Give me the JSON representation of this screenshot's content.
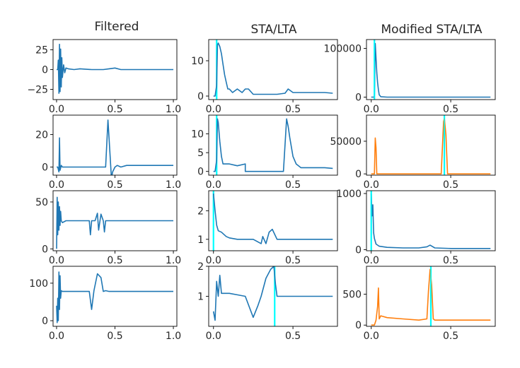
{
  "figure": {
    "columns": [
      "Filtered",
      "STA/LTA",
      "Modified STA/LTA"
    ]
  },
  "colors": {
    "signal": "#1f77b4",
    "modified_alt": "#ff7f0e",
    "marker": "#00ffff",
    "axis": "#000000",
    "text": "#262626"
  },
  "chart_data": [
    {
      "type": "line",
      "row": 0,
      "col": 0,
      "xlim": [
        -0.03,
        1.03
      ],
      "ylim": [
        -38,
        38
      ],
      "xticks": [
        0.0,
        0.5,
        1.0
      ],
      "xtick_labels": [
        "0.0",
        "0.5",
        "1.0"
      ],
      "yticks": [
        25,
        0,
        -25
      ],
      "ytick_labels": [
        "25",
        "0",
        "−25"
      ],
      "markers": [],
      "series": [
        {
          "color": "signal",
          "x": [
            0.0,
            0.01,
            0.015,
            0.02,
            0.025,
            0.03,
            0.035,
            0.04,
            0.045,
            0.05,
            0.06,
            0.07,
            0.08,
            0.1,
            0.15,
            0.2,
            0.3,
            0.4,
            0.45,
            0.5,
            0.55,
            0.6,
            0.7,
            0.8,
            0.9,
            1.0
          ],
          "y": [
            0,
            0,
            12,
            -30,
            32,
            -28,
            26,
            -22,
            15,
            -10,
            6,
            -4,
            2,
            1,
            0,
            1,
            0,
            0,
            1,
            2,
            0,
            0,
            0,
            0,
            0,
            0
          ]
        }
      ]
    },
    {
      "type": "line",
      "row": 0,
      "col": 1,
      "xlim": [
        -0.03,
        0.78
      ],
      "ylim": [
        -1,
        16
      ],
      "xticks": [
        0.0,
        0.5
      ],
      "xtick_labels": [
        "0.0",
        "0.5"
      ],
      "yticks": [
        10,
        0
      ],
      "ytick_labels": [
        "10",
        "0"
      ],
      "markers": [
        0.02
      ],
      "series": [
        {
          "color": "signal",
          "x": [
            0.0,
            0.01,
            0.02,
            0.025,
            0.03,
            0.04,
            0.05,
            0.06,
            0.07,
            0.08,
            0.09,
            0.1,
            0.12,
            0.15,
            0.18,
            0.2,
            0.22,
            0.25,
            0.3,
            0.4,
            0.45,
            0.47,
            0.5,
            0.55,
            0.6,
            0.7,
            0.75
          ],
          "y": [
            0,
            0,
            3,
            14.5,
            15,
            14,
            12,
            9,
            6,
            4,
            2,
            2,
            1,
            2,
            1,
            2,
            2,
            0.5,
            0.5,
            0.5,
            0.8,
            2,
            1,
            1,
            1,
            1,
            0.8
          ]
        }
      ]
    },
    {
      "type": "line",
      "row": 0,
      "col": 2,
      "xlim": [
        -0.03,
        0.78
      ],
      "ylim": [
        -5000,
        118000
      ],
      "xticks": [
        0.0,
        0.5
      ],
      "xtick_labels": [
        "0.0",
        "0.5"
      ],
      "yticks": [
        100000,
        0
      ],
      "ytick_labels": [
        "100000",
        "0"
      ],
      "markers": [
        0.02
      ],
      "series": [
        {
          "color": "signal",
          "x": [
            0.0,
            0.02,
            0.025,
            0.03,
            0.035,
            0.04,
            0.045,
            0.05,
            0.06,
            0.1,
            0.3,
            0.5,
            0.75
          ],
          "y": [
            0,
            0,
            110000,
            80000,
            50000,
            30000,
            15000,
            5000,
            1000,
            0,
            0,
            0,
            0
          ]
        }
      ]
    },
    {
      "type": "line",
      "row": 1,
      "col": 0,
      "xlim": [
        -0.03,
        1.03
      ],
      "ylim": [
        -5,
        32
      ],
      "xticks": [
        0.0,
        0.5,
        1.0
      ],
      "xtick_labels": [
        "0.0",
        "0.5",
        "1.0"
      ],
      "yticks": [
        20,
        0
      ],
      "ytick_labels": [
        "20",
        "0"
      ],
      "markers": [],
      "series": [
        {
          "color": "signal",
          "x": [
            0.0,
            0.01,
            0.02,
            0.025,
            0.03,
            0.04,
            0.05,
            0.08,
            0.1,
            0.2,
            0.3,
            0.4,
            0.42,
            0.44,
            0.46,
            0.47,
            0.48,
            0.5,
            0.52,
            0.55,
            0.6,
            0.7,
            0.8,
            0.9,
            1.0
          ],
          "y": [
            0,
            0,
            -3,
            18,
            -2,
            1,
            0,
            0,
            0,
            0,
            0,
            0,
            0,
            29,
            5,
            -7,
            -3,
            0,
            1,
            0,
            1,
            1,
            1,
            1,
            1
          ]
        }
      ]
    },
    {
      "type": "line",
      "row": 1,
      "col": 1,
      "xlim": [
        -0.03,
        0.78
      ],
      "ylim": [
        -1,
        15
      ],
      "xticks": [
        0.0,
        0.5
      ],
      "xtick_labels": [
        "0.0",
        "0.5"
      ],
      "yticks": [
        10,
        5,
        0
      ],
      "ytick_labels": [
        "10",
        "5",
        "0"
      ],
      "markers": [
        0.02
      ],
      "series": [
        {
          "color": "signal",
          "x": [
            0.0,
            0.01,
            0.02,
            0.025,
            0.03,
            0.04,
            0.05,
            0.06,
            0.08,
            0.1,
            0.15,
            0.2,
            0.2,
            0.3,
            0.4,
            0.44,
            0.46,
            0.47,
            0.48,
            0.5,
            0.52,
            0.55,
            0.6,
            0.7,
            0.75
          ],
          "y": [
            0,
            0,
            3,
            14,
            13,
            8,
            4,
            2,
            2,
            2,
            1.5,
            2,
            0,
            0,
            0,
            0,
            14,
            12,
            9,
            4,
            2,
            1,
            1,
            1,
            0.8
          ]
        }
      ]
    },
    {
      "type": "line",
      "row": 1,
      "col": 2,
      "xlim": [
        -0.03,
        0.78
      ],
      "ylim": [
        -2000,
        90000
      ],
      "xticks": [
        0.0,
        0.5
      ],
      "xtick_labels": [
        "0.0",
        "0.5"
      ],
      "yticks": [
        50000,
        0
      ],
      "ytick_labels": [
        "50000",
        "0"
      ],
      "markers": [
        0.46
      ],
      "series": [
        {
          "color": "modified_alt",
          "x": [
            0.0,
            0.02,
            0.025,
            0.03,
            0.035,
            0.05,
            0.1,
            0.3,
            0.44,
            0.455,
            0.46,
            0.47,
            0.48,
            0.5,
            0.75
          ],
          "y": [
            0,
            0,
            55000,
            40000,
            0,
            0,
            0,
            0,
            0,
            80000,
            85000,
            60000,
            0,
            0,
            0
          ]
        }
      ]
    },
    {
      "type": "line",
      "row": 2,
      "col": 0,
      "xlim": [
        -0.03,
        1.03
      ],
      "ylim": [
        -2,
        62
      ],
      "xticks": [
        0.0,
        0.5,
        1.0
      ],
      "xtick_labels": [
        "0.0",
        "0.5",
        "1.0"
      ],
      "yticks": [
        50,
        0
      ],
      "ytick_labels": [
        "50",
        "0"
      ],
      "markers": [],
      "series": [
        {
          "color": "signal",
          "x": [
            0.0,
            0.005,
            0.01,
            0.015,
            0.02,
            0.025,
            0.03,
            0.035,
            0.04,
            0.05,
            0.08,
            0.1,
            0.2,
            0.28,
            0.29,
            0.3,
            0.33,
            0.35,
            0.36,
            0.38,
            0.4,
            0.41,
            0.42,
            0.45,
            0.5,
            0.6,
            0.8,
            1.0
          ],
          "y": [
            0,
            55,
            15,
            50,
            20,
            45,
            25,
            40,
            30,
            28,
            30,
            30,
            30,
            30,
            15,
            30,
            30,
            38,
            20,
            37,
            30,
            18,
            30,
            30,
            30,
            30,
            30,
            30
          ]
        }
      ]
    },
    {
      "type": "line",
      "row": 2,
      "col": 1,
      "xlim": [
        -0.03,
        0.78
      ],
      "ylim": [
        0.6,
        2.7
      ],
      "xticks": [
        0.0,
        0.5
      ],
      "xtick_labels": [
        "0.0",
        "0.5"
      ],
      "yticks": [
        2,
        1
      ],
      "ytick_labels": [
        "2",
        "1"
      ],
      "markers": [
        0.0
      ],
      "series": [
        {
          "color": "signal",
          "x": [
            0.0,
            0.01,
            0.02,
            0.03,
            0.05,
            0.08,
            0.1,
            0.15,
            0.2,
            0.25,
            0.3,
            0.31,
            0.33,
            0.35,
            0.37,
            0.4,
            0.45,
            0.5,
            0.6,
            0.7,
            0.75
          ],
          "y": [
            2.6,
            2.0,
            1.5,
            1.3,
            1.25,
            1.1,
            1.05,
            1.0,
            1.0,
            1.0,
            0.85,
            1.1,
            0.85,
            1.25,
            1.35,
            1.0,
            1.0,
            1.0,
            1.0,
            1.0,
            1.0
          ]
        }
      ]
    },
    {
      "type": "line",
      "row": 2,
      "col": 2,
      "xlim": [
        -0.03,
        0.78
      ],
      "ylim": [
        -20,
        1050
      ],
      "xticks": [
        0.0,
        0.5
      ],
      "xtick_labels": [
        "0.0",
        "0.5"
      ],
      "yticks": [
        1000,
        0
      ],
      "ytick_labels": [
        "1000",
        "0"
      ],
      "markers": [
        0.0
      ],
      "series": [
        {
          "color": "signal",
          "x": [
            0.0,
            0.005,
            0.01,
            0.015,
            0.02,
            0.03,
            0.05,
            0.1,
            0.2,
            0.3,
            0.35,
            0.37,
            0.4,
            0.5,
            0.75
          ],
          "y": [
            1000,
            600,
            800,
            300,
            200,
            100,
            60,
            40,
            30,
            30,
            50,
            80,
            30,
            20,
            20
          ]
        }
      ]
    },
    {
      "type": "line",
      "row": 3,
      "col": 0,
      "xlim": [
        -0.03,
        1.03
      ],
      "ylim": [
        -15,
        145
      ],
      "xticks": [
        0.0,
        0.5,
        1.0
      ],
      "xtick_labels": [
        "0.0",
        "0.5",
        "1.0"
      ],
      "yticks": [
        100,
        0
      ],
      "ytick_labels": [
        "100",
        "0"
      ],
      "markers": [],
      "series": [
        {
          "color": "signal",
          "x": [
            0.0,
            0.005,
            0.01,
            0.015,
            0.02,
            0.025,
            0.03,
            0.035,
            0.04,
            0.05,
            0.1,
            0.2,
            0.28,
            0.3,
            0.32,
            0.35,
            0.38,
            0.4,
            0.42,
            0.45,
            0.5,
            0.6,
            0.8,
            1.0
          ],
          "y": [
            40,
            -5,
            60,
            0,
            130,
            30,
            120,
            60,
            80,
            78,
            78,
            78,
            78,
            30,
            80,
            125,
            115,
            78,
            80,
            78,
            78,
            78,
            78,
            78
          ]
        }
      ]
    },
    {
      "type": "line",
      "row": 3,
      "col": 1,
      "xlim": [
        -0.03,
        0.78
      ],
      "ylim": [
        0,
        2.0
      ],
      "xticks": [
        0.0,
        0.5
      ],
      "xtick_labels": [
        "0.0",
        "0.5"
      ],
      "yticks": [
        2,
        1
      ],
      "ytick_labels": [
        "2",
        "1"
      ],
      "markers": [
        0.385
      ],
      "series": [
        {
          "color": "signal",
          "x": [
            0.0,
            0.01,
            0.02,
            0.03,
            0.04,
            0.05,
            0.06,
            0.08,
            0.1,
            0.15,
            0.2,
            0.25,
            0.28,
            0.3,
            0.33,
            0.36,
            0.38,
            0.39,
            0.4,
            0.45,
            0.5,
            0.6,
            0.75
          ],
          "y": [
            0.5,
            0.2,
            1.5,
            1.0,
            1.7,
            1.1,
            1.1,
            1.1,
            1.1,
            1.05,
            1.0,
            0.3,
            0.7,
            1.0,
            1.6,
            1.9,
            2.0,
            1.4,
            1.0,
            1.0,
            1.0,
            1.0,
            1.0
          ]
        }
      ]
    },
    {
      "type": "line",
      "row": 3,
      "col": 2,
      "xlim": [
        -0.03,
        0.78
      ],
      "ylim": [
        -20,
        950
      ],
      "xticks": [
        0.0,
        0.5
      ],
      "xtick_labels": [
        "0.0",
        "0.5"
      ],
      "yticks": [
        500,
        0
      ],
      "ytick_labels": [
        "500",
        "0"
      ],
      "markers": [
        0.375
      ],
      "series": [
        {
          "color": "modified_alt",
          "x": [
            0.0,
            0.02,
            0.03,
            0.04,
            0.045,
            0.05,
            0.06,
            0.1,
            0.2,
            0.3,
            0.35,
            0.36,
            0.37,
            0.38,
            0.39,
            0.4,
            0.45,
            0.5,
            0.6,
            0.75
          ],
          "y": [
            0,
            0,
            80,
            300,
            600,
            100,
            150,
            120,
            100,
            80,
            100,
            550,
            900,
            650,
            100,
            80,
            80,
            80,
            80,
            80
          ]
        }
      ]
    }
  ]
}
